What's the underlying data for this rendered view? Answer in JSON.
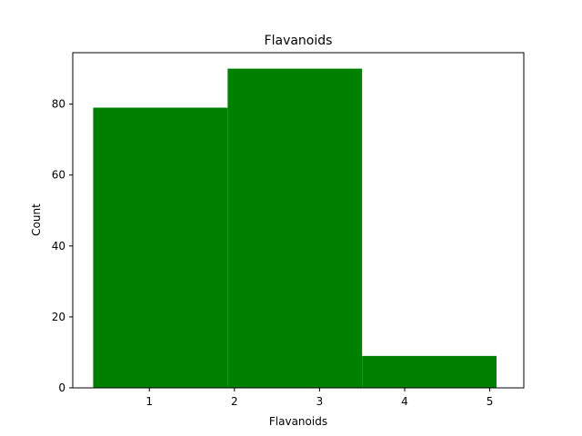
{
  "chart_data": {
    "type": "bar",
    "title": "Flavanoids",
    "xlabel": "Flavanoids",
    "ylabel": "Count",
    "bins": [
      {
        "start": 0.34,
        "end": 1.92,
        "count": 79
      },
      {
        "start": 1.92,
        "end": 3.5,
        "count": 90
      },
      {
        "start": 3.5,
        "end": 5.08,
        "count": 9
      }
    ],
    "xlim": [
      0.1,
      5.4
    ],
    "ylim": [
      0,
      94.5
    ],
    "xticks": [
      1,
      2,
      3,
      4,
      5
    ],
    "yticks": [
      0,
      20,
      40,
      60,
      80
    ],
    "bar_color": "#008000",
    "grid": false
  }
}
